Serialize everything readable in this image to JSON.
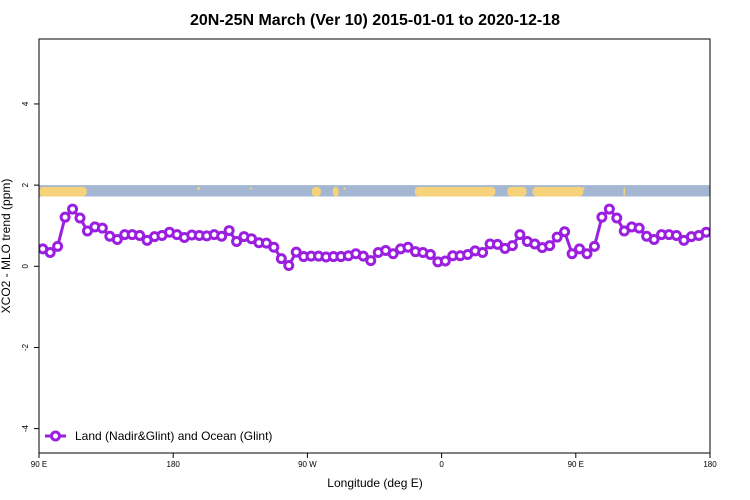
{
  "chart_data": {
    "type": "line",
    "title": "20N-25N March (Ver 10)   2015-01-01 to 2020-12-18",
    "xlabel": "Longitude (deg E)",
    "ylabel": "XCO2 - MLO trend (ppm)",
    "xlim": [
      90,
      540
    ],
    "ylim": [
      -4.6,
      5.6
    ],
    "x_ticks": [
      {
        "value": 90,
        "label": "90 E"
      },
      {
        "value": 180,
        "label": "180"
      },
      {
        "value": 270,
        "label": "90 W"
      },
      {
        "value": 360,
        "label": "0"
      },
      {
        "value": 450,
        "label": "90 E"
      },
      {
        "value": 540,
        "label": "180"
      }
    ],
    "y_ticks": [
      {
        "value": -4,
        "label": "-4"
      },
      {
        "value": -2,
        "label": "-2"
      },
      {
        "value": 0,
        "label": "0"
      },
      {
        "value": 2,
        "label": "2"
      },
      {
        "value": 4,
        "label": "4"
      }
    ],
    "grid": false,
    "legend_position": "bottom-left",
    "map_strip": {
      "y_from": 1.72,
      "y_to": 2.0,
      "ocean_color": "#a3b7d3",
      "land_color": "#f6d27a"
    },
    "series": [
      {
        "name": "Land (Nadir&Glint) and Ocean (Glint)",
        "color": "#9b1fe0",
        "x": [
          92.5,
          97.5,
          102.5,
          107.5,
          112.5,
          117.5,
          122.5,
          127.5,
          132.5,
          137.5,
          142.5,
          147.5,
          152.5,
          157.5,
          162.5,
          167.5,
          172.5,
          177.5,
          182.5,
          187.5,
          192.5,
          197.5,
          202.5,
          207.5,
          212.5,
          217.5,
          222.5,
          227.5,
          232.5,
          237.5,
          242.5,
          247.5,
          252.5,
          257.5,
          262.5,
          267.5,
          272.5,
          277.5,
          282.5,
          287.5,
          292.5,
          297.5,
          302.5,
          307.5,
          312.5,
          317.5,
          322.5,
          327.5,
          332.5,
          337.5,
          342.5,
          347.5,
          352.5,
          357.5,
          362.5,
          367.5,
          372.5,
          377.5,
          382.5,
          387.5,
          392.5,
          397.5,
          402.5,
          407.5,
          412.5,
          417.5,
          422.5,
          427.5,
          432.5,
          437.5,
          442.5,
          447.5,
          452.5,
          457.5,
          462.5,
          467.5,
          472.5,
          477.5,
          482.5,
          487.5,
          492.5,
          497.5,
          502.5,
          507.5,
          512.5,
          517.5,
          522.5,
          527.5,
          532.5,
          537.5
        ],
        "y": [
          0.43,
          0.34,
          0.49,
          1.21,
          1.41,
          1.19,
          0.87,
          0.97,
          0.94,
          0.74,
          0.66,
          0.78,
          0.78,
          0.76,
          0.64,
          0.73,
          0.76,
          0.84,
          0.78,
          0.71,
          0.77,
          0.76,
          0.75,
          0.78,
          0.74,
          0.88,
          0.61,
          0.73,
          0.68,
          0.58,
          0.57,
          0.47,
          0.19,
          0.02,
          0.35,
          0.24,
          0.25,
          0.25,
          0.23,
          0.24,
          0.24,
          0.26,
          0.31,
          0.25,
          0.14,
          0.34,
          0.39,
          0.31,
          0.43,
          0.47,
          0.36,
          0.34,
          0.29,
          0.11,
          0.13,
          0.26,
          0.26,
          0.29,
          0.38,
          0.34,
          0.55,
          0.54,
          0.44,
          0.51,
          0.78,
          0.61,
          0.55,
          0.46,
          0.51,
          0.72,
          0.85,
          0.31,
          0.43,
          0.31,
          0.49,
          1.21,
          1.41,
          1.19,
          0.87,
          0.97,
          0.94,
          0.74,
          0.66,
          0.78,
          0.78,
          0.76,
          0.64,
          0.73,
          0.76,
          0.84
        ]
      }
    ]
  }
}
